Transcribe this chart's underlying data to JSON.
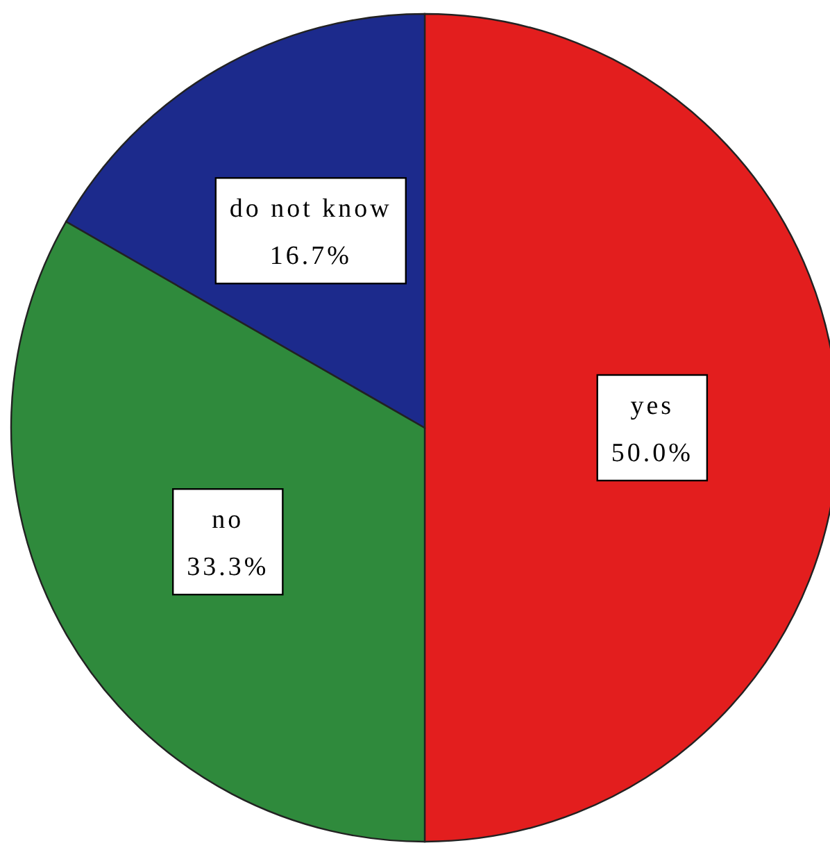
{
  "chart_data": {
    "type": "pie",
    "categories": [
      "yes",
      "no",
      "do not know"
    ],
    "values": [
      50.0,
      33.3,
      16.7
    ],
    "colors": [
      "#e31e1e",
      "#2f8a3c",
      "#1c2a8c"
    ],
    "value_labels": [
      "50.0%",
      "33.3%",
      "16.7%"
    ]
  }
}
